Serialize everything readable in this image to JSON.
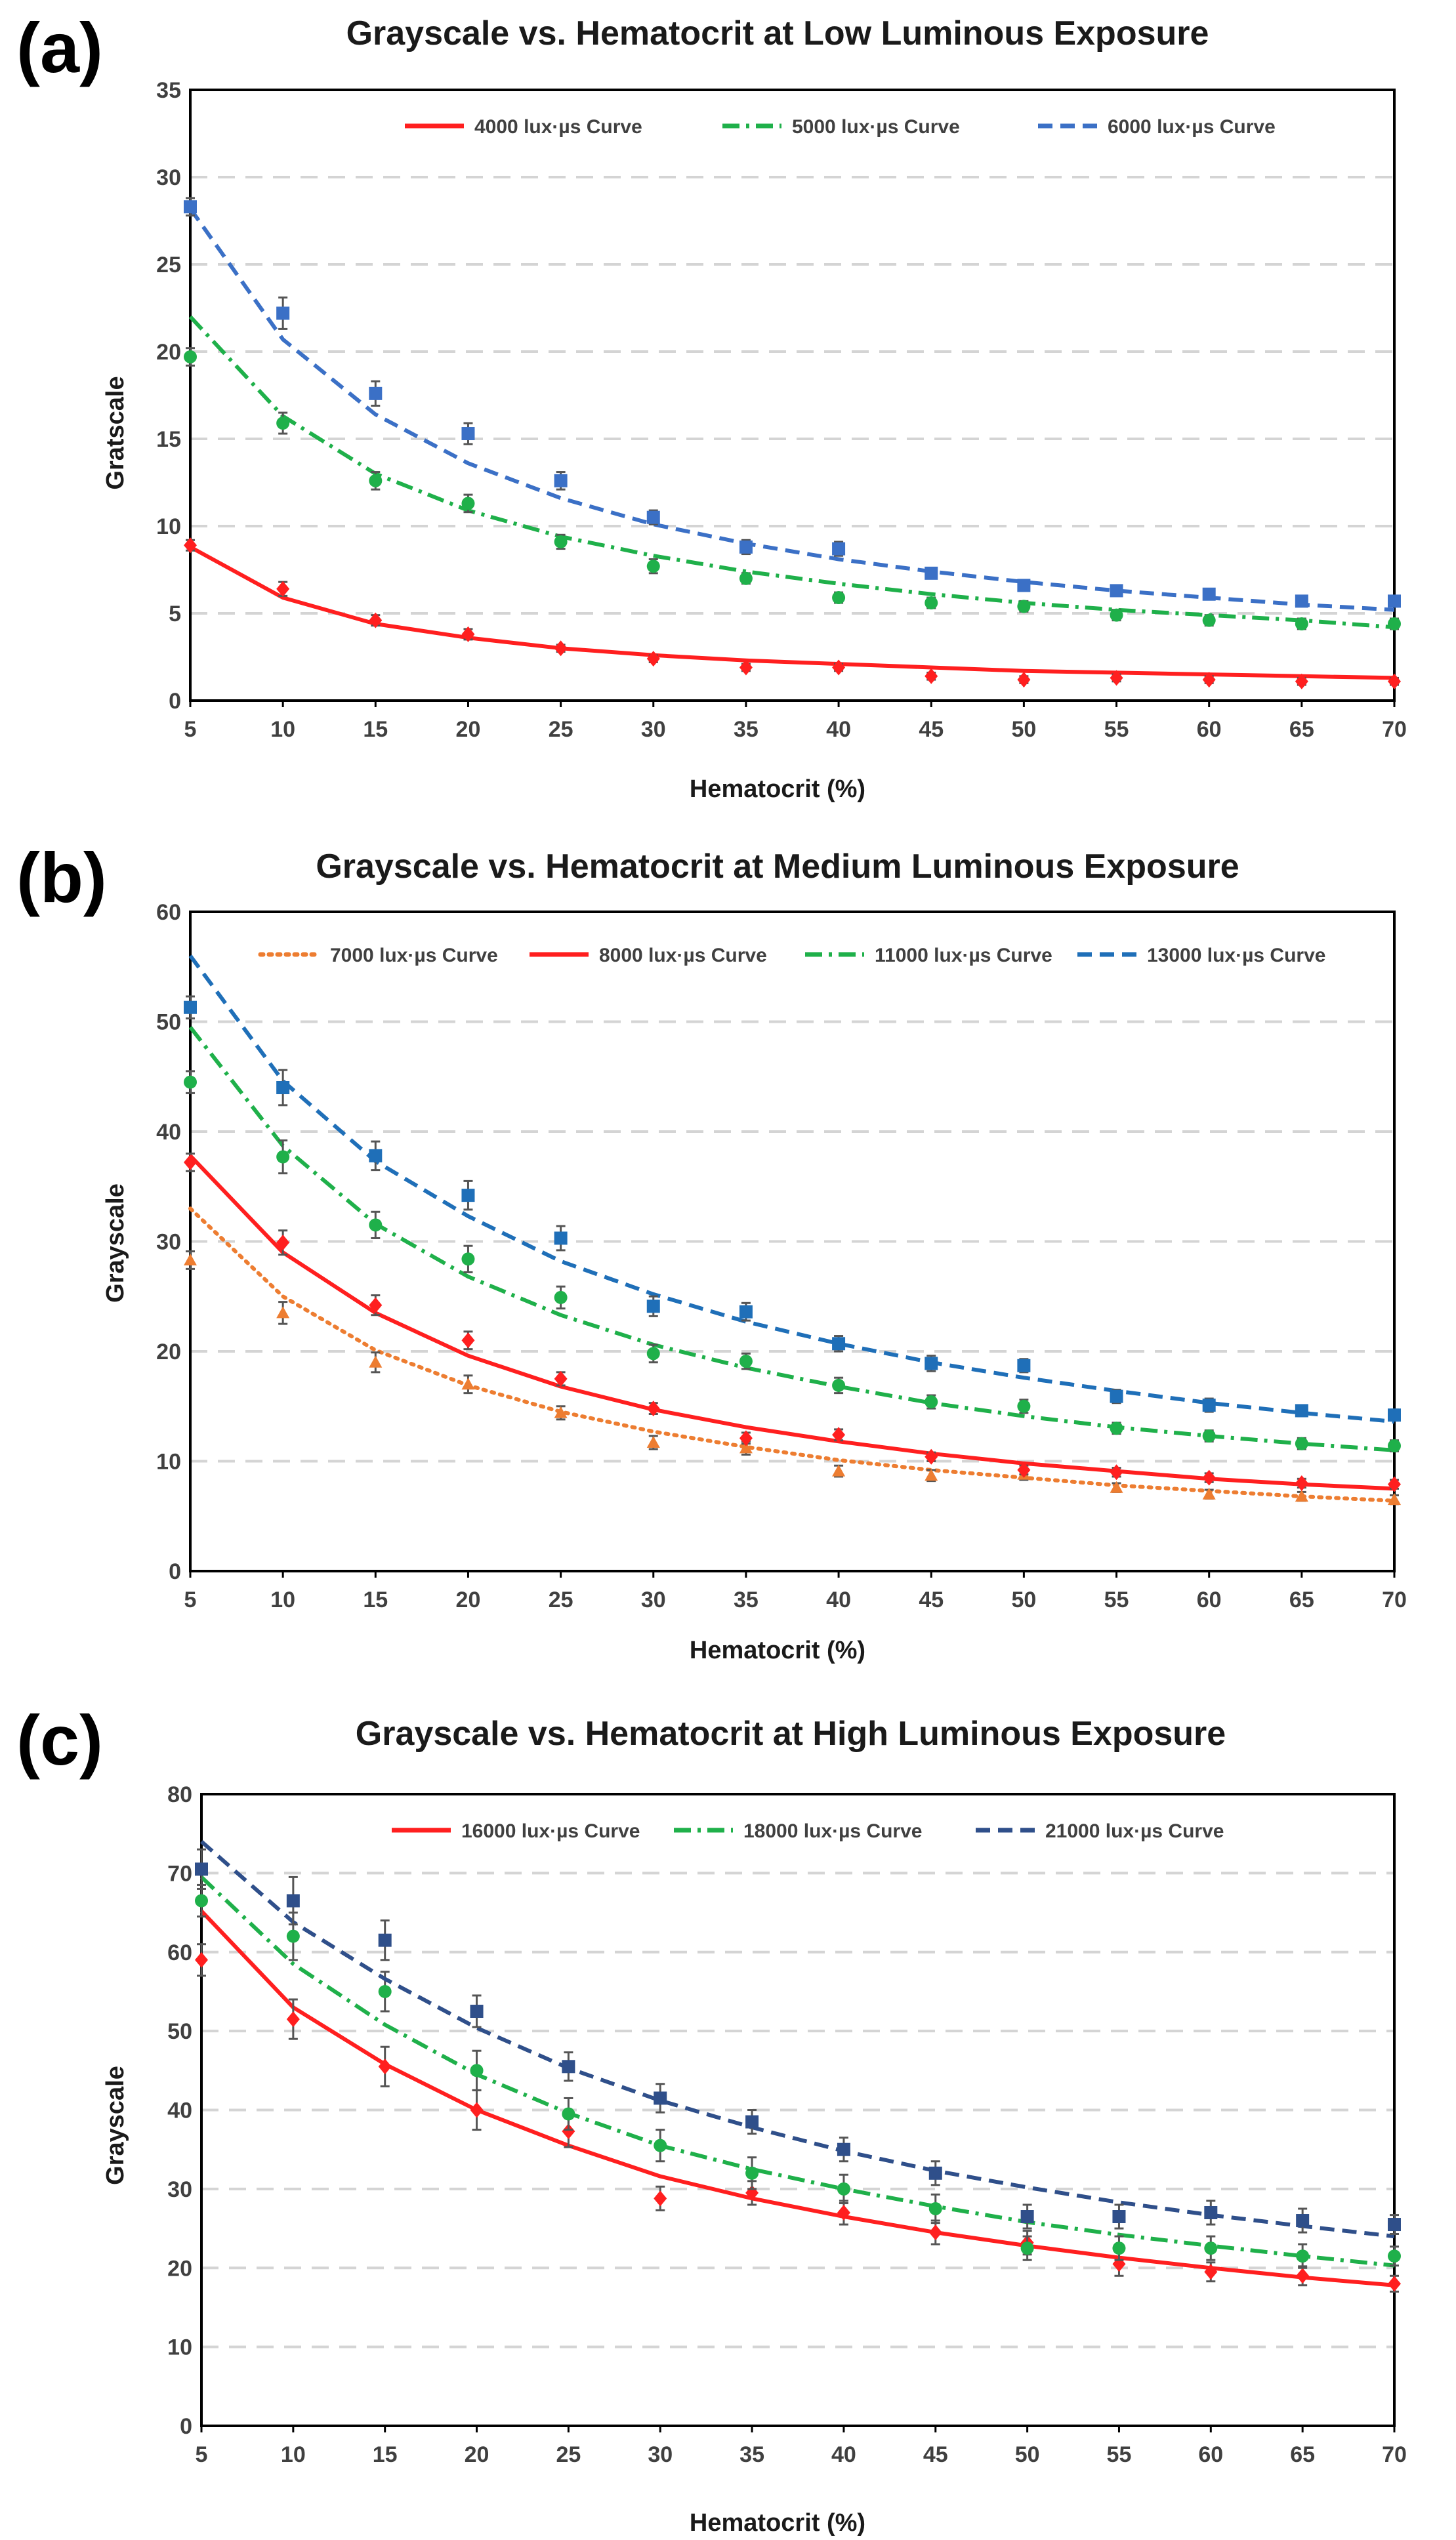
{
  "chart_data": [
    {
      "panel": "(a)",
      "type": "scatter",
      "title": "Grayscale vs. Hematocrit at Low Luminous Exposure",
      "xlabel": "Hematocrit  (%)",
      "ylabel": "Gratscale",
      "xlim": [
        5,
        70
      ],
      "ylim": [
        0,
        35
      ],
      "xticks": [
        5,
        10,
        15,
        20,
        25,
        30,
        35,
        40,
        45,
        50,
        55,
        60,
        65,
        70
      ],
      "yticks": [
        0,
        5,
        10,
        15,
        20,
        25,
        30,
        35
      ],
      "x": [
        5,
        10,
        15,
        20,
        25,
        30,
        35,
        40,
        45,
        50,
        55,
        60,
        65,
        70
      ],
      "legend_position": "top",
      "grid": "horizontal-dashed",
      "series": [
        {
          "name": "4000 lux·µs Curve",
          "color": "#ff1f1f",
          "dash": "solid",
          "marker": "diamond",
          "values": [
            8.9,
            6.4,
            4.6,
            3.8,
            3.0,
            2.4,
            1.9,
            1.9,
            1.4,
            1.2,
            1.3,
            1.2,
            1.1,
            1.1
          ],
          "errors": [
            0.3,
            0.4,
            0.3,
            0.3,
            0.2,
            0.2,
            0.2,
            0.2,
            0.2,
            0.2,
            0.2,
            0.2,
            0.2,
            0.2
          ],
          "curve": [
            8.8,
            5.9,
            4.4,
            3.6,
            3.0,
            2.6,
            2.3,
            2.1,
            1.9,
            1.7,
            1.6,
            1.5,
            1.4,
            1.3
          ]
        },
        {
          "name": "5000 lux·µs Curve",
          "color": "#1fb04a",
          "dash": "dashdot",
          "marker": "circle",
          "values": [
            19.7,
            15.9,
            12.6,
            11.3,
            9.1,
            7.7,
            7.0,
            5.9,
            5.6,
            5.4,
            4.9,
            4.6,
            4.4,
            4.4
          ],
          "errors": [
            0.5,
            0.6,
            0.5,
            0.5,
            0.4,
            0.4,
            0.3,
            0.3,
            0.3,
            0.3,
            0.3,
            0.3,
            0.3,
            0.3
          ],
          "curve": [
            22.0,
            16.3,
            13.0,
            10.9,
            9.4,
            8.3,
            7.4,
            6.7,
            6.1,
            5.6,
            5.2,
            4.9,
            4.6,
            4.2
          ]
        },
        {
          "name": "6000 lux·µs Curve",
          "color": "#3b70c6",
          "dash": "dashed",
          "marker": "square",
          "values": [
            28.3,
            22.2,
            17.6,
            15.3,
            12.6,
            10.5,
            8.8,
            8.7,
            7.3,
            6.6,
            6.3,
            6.1,
            5.7,
            5.7
          ],
          "errors": [
            0.5,
            0.9,
            0.7,
            0.6,
            0.5,
            0.4,
            0.4,
            0.4,
            0.3,
            0.3,
            0.3,
            0.3,
            0.3,
            0.3
          ],
          "curve": [
            28.2,
            20.7,
            16.4,
            13.6,
            11.6,
            10.1,
            9.0,
            8.1,
            7.4,
            6.8,
            6.3,
            5.9,
            5.5,
            5.2
          ]
        }
      ]
    },
    {
      "panel": "(b)",
      "type": "scatter",
      "title": "Grayscale vs. Hematocrit at Medium Luminous Exposure",
      "xlabel": "Hematocrit  (%)",
      "ylabel": "Grayscale",
      "xlim": [
        5,
        70
      ],
      "ylim": [
        0,
        60
      ],
      "xticks": [
        5,
        10,
        15,
        20,
        25,
        30,
        35,
        40,
        45,
        50,
        55,
        60,
        65,
        70
      ],
      "yticks": [
        0,
        10,
        20,
        30,
        40,
        50,
        60
      ],
      "x": [
        5,
        10,
        15,
        20,
        25,
        30,
        35,
        40,
        45,
        50,
        55,
        60,
        65,
        70
      ],
      "legend_position": "top",
      "grid": "horizontal-dashed",
      "series": [
        {
          "name": "7000 lux·µs Curve",
          "color": "#ed7d31",
          "dash": "dotted",
          "marker": "triangle",
          "values": [
            28.3,
            23.5,
            19.0,
            17.0,
            14.4,
            11.7,
            11.2,
            9.1,
            8.7,
            8.8,
            7.6,
            7.0,
            6.8,
            6.5
          ],
          "errors": [
            0.8,
            1.0,
            0.9,
            0.8,
            0.6,
            0.6,
            0.6,
            0.5,
            0.5,
            0.5,
            0.4,
            0.4,
            0.4,
            0.4
          ],
          "curve": [
            33.0,
            25.0,
            20.1,
            16.9,
            14.5,
            12.7,
            11.3,
            10.1,
            9.2,
            8.5,
            7.8,
            7.3,
            6.8,
            6.4
          ]
        },
        {
          "name": "8000 lux·µs Curve",
          "color": "#ff1f1f",
          "dash": "solid",
          "marker": "diamond",
          "values": [
            37.2,
            29.9,
            24.2,
            21.0,
            17.5,
            14.8,
            12.1,
            12.4,
            10.4,
            9.2,
            9.0,
            8.5,
            8.0,
            7.9
          ],
          "errors": [
            0.8,
            1.1,
            0.9,
            0.8,
            0.6,
            0.5,
            0.5,
            0.5,
            0.4,
            0.4,
            0.4,
            0.4,
            0.4,
            0.4
          ],
          "curve": [
            37.8,
            29.0,
            23.5,
            19.6,
            16.8,
            14.7,
            13.1,
            11.8,
            10.7,
            9.8,
            9.1,
            8.4,
            7.9,
            7.5
          ]
        },
        {
          "name": "11000 lux·µs Curve",
          "color": "#1fb04a",
          "dash": "dashdot",
          "marker": "circle",
          "values": [
            44.5,
            37.7,
            31.5,
            28.4,
            24.9,
            19.8,
            19.1,
            16.9,
            15.4,
            15.0,
            13.0,
            12.3,
            11.6,
            11.4
          ],
          "errors": [
            1.0,
            1.5,
            1.2,
            1.2,
            1.0,
            0.8,
            0.7,
            0.7,
            0.6,
            0.6,
            0.5,
            0.5,
            0.5,
            0.5
          ],
          "curve": [
            49.5,
            38.7,
            31.6,
            26.8,
            23.3,
            20.6,
            18.5,
            16.8,
            15.3,
            14.1,
            13.1,
            12.3,
            11.6,
            11.0
          ]
        },
        {
          "name": "13000 lux·µs Curve",
          "color": "#1f6fb8",
          "dash": "dashed",
          "marker": "square",
          "values": [
            51.3,
            44.0,
            37.8,
            34.2,
            30.3,
            24.1,
            23.6,
            20.7,
            18.9,
            18.7,
            15.9,
            15.1,
            14.6,
            14.2
          ],
          "errors": [
            1.0,
            1.6,
            1.3,
            1.3,
            1.1,
            0.9,
            0.8,
            0.7,
            0.7,
            0.6,
            0.6,
            0.6,
            0.5,
            0.5
          ],
          "curve": [
            56.0,
            44.6,
            37.3,
            32.3,
            28.2,
            25.2,
            22.7,
            20.7,
            19.0,
            17.6,
            16.4,
            15.3,
            14.4,
            13.6
          ]
        }
      ]
    },
    {
      "panel": "(c)",
      "type": "scatter",
      "title": "Grayscale vs. Hematocrit at High Luminous Exposure",
      "xlabel": "Hematocrit  (%)",
      "ylabel": "Grayscale",
      "xlim": [
        5,
        70
      ],
      "ylim": [
        0,
        80
      ],
      "xticks": [
        5,
        10,
        15,
        20,
        25,
        30,
        35,
        40,
        45,
        50,
        55,
        60,
        65,
        70
      ],
      "yticks": [
        0,
        10,
        20,
        30,
        40,
        50,
        60,
        70,
        80
      ],
      "x": [
        5,
        10,
        15,
        20,
        25,
        30,
        35,
        40,
        45,
        50,
        55,
        60,
        65,
        70
      ],
      "legend_position": "top",
      "grid": "horizontal-dashed",
      "series": [
        {
          "name": "16000 lux·µs Curve",
          "color": "#ff1f1f",
          "dash": "solid",
          "marker": "diamond",
          "values": [
            59.0,
            51.5,
            45.5,
            40.0,
            37.3,
            28.8,
            29.5,
            27.0,
            24.5,
            23.2,
            20.5,
            19.5,
            19.0,
            18.0
          ],
          "errors": [
            2.0,
            2.5,
            2.5,
            2.5,
            2.0,
            1.5,
            1.5,
            1.5,
            1.5,
            1.5,
            1.5,
            1.2,
            1.2,
            1.0
          ],
          "curve": [
            65.2,
            53.0,
            45.8,
            40.0,
            35.5,
            31.6,
            28.8,
            26.5,
            24.5,
            22.8,
            21.3,
            20.0,
            18.8,
            17.8
          ]
        },
        {
          "name": "18000 lux·µs Curve",
          "color": "#1fb04a",
          "dash": "dashdot",
          "marker": "circle",
          "values": [
            66.5,
            62.0,
            55.0,
            45.0,
            39.5,
            35.5,
            32.0,
            30.0,
            27.5,
            22.5,
            22.5,
            22.5,
            21.5,
            21.5
          ],
          "errors": [
            2.0,
            3.0,
            2.5,
            2.5,
            2.0,
            2.0,
            2.0,
            1.8,
            1.8,
            1.5,
            1.5,
            1.5,
            1.5,
            1.2
          ],
          "curve": [
            69.5,
            58.5,
            50.8,
            44.5,
            39.6,
            35.5,
            32.5,
            30.0,
            27.8,
            25.8,
            24.2,
            22.8,
            21.5,
            20.3
          ]
        },
        {
          "name": "21000 lux·µs Curve",
          "color": "#2f4f8a",
          "dash": "dashed",
          "marker": "square",
          "values": [
            70.5,
            66.5,
            61.5,
            52.5,
            45.5,
            41.5,
            38.5,
            35.0,
            32.0,
            26.5,
            26.5,
            27.0,
            26.0,
            25.5
          ],
          "errors": [
            2.5,
            3.0,
            2.5,
            2.0,
            1.8,
            1.8,
            1.5,
            1.5,
            1.5,
            1.5,
            1.5,
            1.5,
            1.5,
            1.2
          ],
          "curve": [
            74.0,
            63.8,
            56.6,
            50.4,
            45.3,
            41.2,
            37.8,
            34.8,
            32.3,
            30.2,
            28.3,
            26.7,
            25.3,
            24.0
          ]
        }
      ]
    }
  ]
}
